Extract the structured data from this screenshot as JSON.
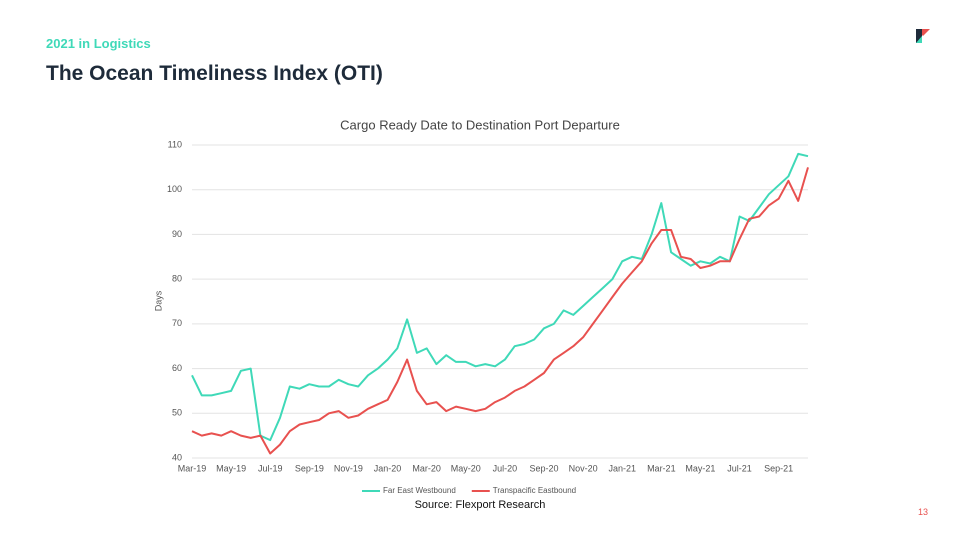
{
  "header": {
    "kicker": "2021 in Logistics",
    "title": "The Ocean Timeliness Index (OTI)"
  },
  "chart_data": {
    "type": "line",
    "title": "Cargo Ready Date to Destination Port Departure",
    "y_label": "Days",
    "categories": [
      "Mar-19",
      null,
      null,
      null,
      "May-19",
      null,
      null,
      null,
      "Jul-19",
      null,
      null,
      null,
      "Sep-19",
      null,
      null,
      null,
      "Nov-19",
      null,
      null,
      null,
      "Jan-20",
      null,
      null,
      null,
      "Mar-20",
      null,
      null,
      null,
      "May-20",
      null,
      null,
      null,
      "Jul-20",
      null,
      null,
      null,
      "Sep-20",
      null,
      null,
      null,
      "Nov-20",
      null,
      null,
      null,
      "Jan-21",
      null,
      null,
      null,
      "Mar-21",
      null,
      null,
      null,
      "May-21",
      null,
      null,
      null,
      "Jul-21",
      null,
      null,
      null,
      "Sep-21",
      null,
      null,
      null
    ],
    "series": [
      {
        "name": "Far East Westbound",
        "color": "#3fd9b8",
        "values": [
          58.5,
          54,
          54,
          54.5,
          55,
          59.5,
          60,
          45,
          44,
          49,
          56,
          55.5,
          56.5,
          56,
          56,
          57.5,
          56.5,
          56,
          58.5,
          60,
          62,
          64.5,
          71,
          63.5,
          64.5,
          61,
          63,
          61.5,
          61.5,
          60.5,
          61,
          60.5,
          62,
          65,
          65.5,
          66.5,
          69,
          70,
          73,
          72,
          74,
          76,
          78,
          80,
          84,
          85,
          84.5,
          90,
          97,
          86,
          84.5,
          83,
          84,
          83.5,
          85,
          84,
          94,
          93,
          96,
          99,
          101,
          103,
          108,
          107.5
        ]
      },
      {
        "name": "Transpacific Eastbound",
        "color": "#e8514f",
        "values": [
          46,
          45,
          45.5,
          45,
          46,
          45,
          44.5,
          45,
          41,
          43,
          46,
          47.5,
          48,
          48.5,
          50,
          50.5,
          49,
          49.5,
          51,
          52,
          53,
          57,
          62,
          55,
          52,
          52.5,
          50.5,
          51.5,
          51,
          50.5,
          51,
          52.5,
          53.5,
          55,
          56,
          57.5,
          59,
          62,
          63.5,
          65,
          67,
          70,
          73,
          76,
          79,
          81.5,
          84,
          88,
          91,
          91,
          85,
          84.5,
          82.5,
          83,
          84,
          84,
          89,
          93.5,
          94,
          96.5,
          98,
          102,
          97.5,
          105
        ]
      }
    ],
    "ylim": [
      40,
      110
    ],
    "yticks": [
      40,
      50,
      60,
      70,
      80,
      90,
      100,
      110
    ],
    "grid": true,
    "legend": "bottom",
    "source": "Source: Flexport Research"
  },
  "page_number": "13"
}
